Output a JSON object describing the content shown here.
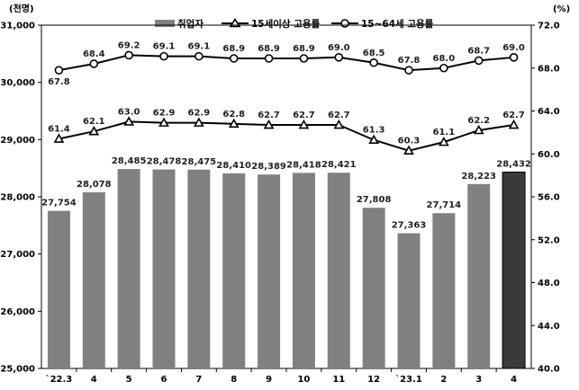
{
  "chart_data": {
    "type": "bar",
    "categories": [
      "`22.3",
      "4",
      "5",
      "6",
      "7",
      "8",
      "9",
      "10",
      "11",
      "12",
      "`23.1",
      "2",
      "3",
      "4"
    ],
    "series": [
      {
        "name": "취업자",
        "axis": "left",
        "type": "bar",
        "values": [
          27754,
          28078,
          28485,
          28478,
          28475,
          28410,
          28389,
          28418,
          28421,
          27808,
          27363,
          27714,
          28223,
          28432
        ],
        "labels": [
          "27,754",
          "28,078",
          "28,485",
          "28,478",
          "28,475",
          "28,410",
          "28,389",
          "28,418",
          "28,421",
          "27,808",
          "27,363",
          "27,714",
          "28,223",
          "28,432"
        ]
      },
      {
        "name": "15세이상 고용률",
        "axis": "right",
        "type": "line",
        "marker": "triangle",
        "values": [
          61.4,
          62.1,
          63.0,
          62.9,
          62.9,
          62.8,
          62.7,
          62.7,
          62.7,
          61.3,
          60.3,
          61.1,
          62.2,
          62.7
        ],
        "labels": [
          "61.4",
          "62.1",
          "63.0",
          "62.9",
          "62.9",
          "62.8",
          "62.7",
          "62.7",
          "62.7",
          "61.3",
          "60.3",
          "61.1",
          "62.2",
          "62.7"
        ]
      },
      {
        "name": "15~64세 고용률",
        "axis": "right",
        "type": "line",
        "marker": "circle",
        "values": [
          67.8,
          68.4,
          69.2,
          69.1,
          69.1,
          68.9,
          68.9,
          68.9,
          69.0,
          68.5,
          67.8,
          68.0,
          68.7,
          69.0
        ],
        "labels": [
          "67.8",
          "68.4",
          "69.2",
          "69.1",
          "69.1",
          "68.9",
          "68.9",
          "68.9",
          "69.0",
          "68.5",
          "67.8",
          "68.0",
          "68.7",
          "69.0"
        ]
      }
    ],
    "y_left": {
      "unit": "(천명)",
      "min": 25000,
      "max": 31000,
      "ticks": [
        25000,
        26000,
        27000,
        28000,
        29000,
        30000,
        31000
      ],
      "tick_labels": [
        "25,000",
        "26,000",
        "27,000",
        "28,000",
        "29,000",
        "30,000",
        "31,000"
      ]
    },
    "y_right": {
      "unit": "(%)",
      "min": 40.0,
      "max": 72.0,
      "ticks": [
        40,
        44,
        48,
        52,
        56,
        60,
        64,
        68,
        72
      ],
      "tick_labels": [
        "40.0",
        "44.0",
        "48.0",
        "52.0",
        "56.0",
        "60.0",
        "64.0",
        "68.0",
        "72.0"
      ]
    },
    "grid": false,
    "legend": "top-center",
    "colors": {
      "bar": "#808080",
      "bar_highlight": "#3a3a3a",
      "line": "#000000",
      "text": "#000000"
    }
  }
}
